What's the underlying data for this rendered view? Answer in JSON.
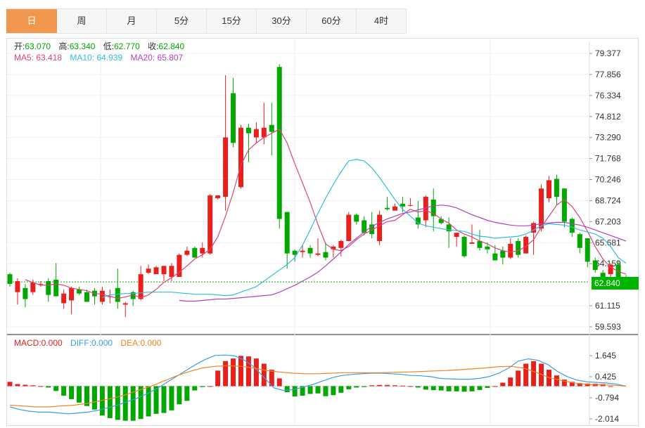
{
  "tabs": [
    {
      "label": "日",
      "active": true
    },
    {
      "label": "周",
      "active": false
    },
    {
      "label": "月",
      "active": false
    },
    {
      "label": "5分",
      "active": false
    },
    {
      "label": "15分",
      "active": false
    },
    {
      "label": "30分",
      "active": false
    },
    {
      "label": "60分",
      "active": false
    },
    {
      "label": "4时",
      "active": false
    }
  ],
  "ohlc": {
    "open_label": "开:",
    "open": "63.070",
    "high_label": "高:",
    "high": "63.340",
    "low_label": "低:",
    "low": "62.770",
    "close_label": "收:",
    "close": "62.840"
  },
  "ma": {
    "ma5_label": "MA5:",
    "ma5": "63.418",
    "ma10_label": "MA10:",
    "ma10": "64.939",
    "ma20_label": "MA20:",
    "ma20": "65.807"
  },
  "macd": {
    "macd_label": "MACD:",
    "macd": "0.000",
    "diff_label": "DIFF:",
    "diff": "0.000",
    "dea_label": "DEA:",
    "dea": "0.000"
  },
  "last_price": "62.840",
  "colors": {
    "up": "#e8201c",
    "down": "#00a800",
    "ma5": "#e0427a",
    "ma10": "#33bde0",
    "ma20": "#b044c0",
    "dea": "#f5821f",
    "diff": "#3a9ee6",
    "accent": "#f2974e",
    "price_tag": "#00b400"
  },
  "chart_data": [
    {
      "type": "candlestick",
      "y_ticks": [
        "79.377",
        "77.856",
        "76.334",
        "74.812",
        "73.290",
        "71.768",
        "70.246",
        "68.724",
        "67.203",
        "65.681",
        "64.159",
        "62.840",
        "61.115",
        "59.593"
      ],
      "ylim": [
        59.0,
        80.0
      ],
      "grid": true,
      "candles": [
        [
          63.4,
          62.7,
          63.5,
          62.5
        ],
        [
          62.1,
          62.9,
          63.1,
          61.2
        ],
        [
          62.4,
          61.6,
          62.7,
          61.0
        ],
        [
          62.1,
          62.8,
          63.0,
          61.9
        ],
        [
          62.7,
          62.7,
          62.9,
          62.5
        ],
        [
          62.9,
          61.9,
          63.1,
          61.4
        ],
        [
          63.0,
          61.8,
          64.2,
          61.8
        ],
        [
          61.3,
          62.0,
          62.3,
          60.9
        ],
        [
          61.5,
          62.4,
          62.5,
          60.5
        ],
        [
          62.3,
          62.0,
          62.5,
          61.9
        ],
        [
          62.1,
          61.4,
          62.3,
          61.4
        ],
        [
          62.2,
          61.8,
          62.4,
          61.2
        ],
        [
          61.4,
          62.2,
          62.5,
          61.2
        ],
        [
          61.8,
          61.8,
          62.3,
          61.3
        ],
        [
          62.4,
          61.4,
          63.8,
          60.9
        ],
        [
          61.2,
          61.3,
          61.4,
          60.3
        ],
        [
          62.1,
          61.6,
          62.2,
          61.1
        ],
        [
          61.6,
          63.4,
          64.0,
          61.5
        ],
        [
          63.5,
          63.8,
          64.1,
          63.4
        ],
        [
          63.4,
          63.9,
          64.0,
          63.4
        ],
        [
          63.4,
          64.0,
          64.0,
          62.9
        ],
        [
          63.2,
          64.0,
          64.2,
          62.9
        ],
        [
          63.2,
          64.8,
          64.9,
          63.2
        ],
        [
          64.8,
          65.1,
          65.4,
          64.7
        ],
        [
          65.3,
          64.6,
          65.4,
          64.6
        ],
        [
          64.9,
          65.3,
          65.7,
          64.6
        ],
        [
          64.9,
          69.1,
          69.2,
          64.8
        ],
        [
          68.9,
          69.1,
          69.1,
          68.8
        ],
        [
          69.0,
          73.3,
          77.8,
          68.0
        ],
        [
          76.5,
          72.9,
          77.6,
          72.6
        ],
        [
          69.7,
          74.0,
          74.2,
          69.6
        ],
        [
          74.0,
          73.6,
          74.3,
          71.5
        ],
        [
          73.3,
          73.9,
          74.4,
          72.9
        ],
        [
          73.3,
          74.0,
          75.8,
          72.8
        ],
        [
          74.2,
          73.7,
          75.8,
          72.0
        ],
        [
          78.4,
          67.4,
          78.6,
          66.7
        ],
        [
          67.9,
          64.9,
          67.9,
          63.8
        ],
        [
          65.1,
          64.8,
          65.2,
          64.3
        ],
        [
          65.0,
          65.1,
          65.5,
          64.6
        ],
        [
          65.3,
          64.9,
          65.5,
          64.6
        ],
        [
          64.8,
          64.9,
          66.0,
          64.7
        ],
        [
          65.0,
          64.6,
          65.7,
          64.4
        ],
        [
          65.2,
          65.4,
          65.5,
          64.6
        ],
        [
          65.3,
          65.8,
          65.9,
          64.7
        ],
        [
          65.8,
          67.7,
          67.9,
          65.8
        ],
        [
          67.7,
          67.2,
          67.8,
          67.0
        ],
        [
          67.3,
          66.4,
          67.6,
          66.2
        ],
        [
          67.0,
          66.3,
          67.9,
          66.0
        ],
        [
          65.8,
          67.7,
          68.0,
          65.5
        ],
        [
          68.2,
          68.1,
          69.0,
          68.0
        ],
        [
          68.0,
          68.3,
          68.5,
          68.0
        ],
        [
          68.5,
          68.3,
          69.0,
          67.9
        ],
        [
          68.4,
          68.4,
          68.9,
          68.3
        ],
        [
          67.5,
          67.0,
          68.7,
          66.7
        ],
        [
          67.3,
          69.0,
          69.1,
          66.8
        ],
        [
          68.8,
          67.6,
          69.6,
          66.5
        ],
        [
          67.4,
          67.1,
          67.6,
          67.0
        ],
        [
          67.0,
          66.5,
          67.5,
          65.3
        ],
        [
          66.1,
          66.4,
          66.4,
          65.4
        ],
        [
          66.1,
          64.7,
          66.2,
          64.6
        ],
        [
          65.6,
          65.7,
          67.0,
          65.6
        ],
        [
          65.8,
          65.3,
          66.6,
          65.1
        ],
        [
          65.4,
          65.2,
          65.7,
          64.9
        ],
        [
          64.9,
          64.4,
          65.5,
          64.4
        ],
        [
          65.1,
          64.6,
          65.4,
          64.1
        ],
        [
          64.6,
          65.6,
          66.0,
          64.5
        ],
        [
          65.8,
          64.8,
          66.0,
          64.6
        ],
        [
          64.9,
          66.1,
          66.2,
          64.9
        ],
        [
          66.4,
          67.1,
          67.2,
          64.8
        ],
        [
          66.7,
          69.6,
          69.9,
          66.5
        ],
        [
          68.9,
          70.2,
          70.5,
          68.6
        ],
        [
          70.3,
          69.0,
          70.6,
          68.4
        ],
        [
          69.6,
          67.2,
          69.6,
          66.8
        ],
        [
          67.4,
          66.4,
          67.5,
          66.1
        ],
        [
          66.3,
          65.3,
          66.4,
          64.9
        ],
        [
          66.0,
          64.3,
          66.0,
          63.9
        ],
        [
          64.4,
          63.7,
          64.6,
          63.5
        ],
        [
          63.5,
          62.9,
          63.7,
          62.9
        ],
        [
          63.4,
          64.1,
          64.2,
          63.0
        ],
        [
          64.1,
          63.0,
          64.4,
          62.9
        ],
        [
          63.07,
          62.84,
          63.34,
          62.77
        ]
      ],
      "ma5": [
        63.0,
        62.8,
        62.6,
        62.6,
        62.7,
        62.6,
        62.4,
        62.3,
        62.2,
        62.0,
        61.95,
        61.8,
        61.65,
        61.75,
        61.9,
        61.7,
        61.9,
        62.3,
        62.8,
        63.15,
        63.55,
        64.0,
        64.5,
        64.8,
        65.2,
        66.1,
        67.6,
        69.3,
        71.3,
        72.4,
        72.9,
        73.3,
        73.6,
        73.9,
        72.9,
        71.4,
        70.0,
        68.6,
        67.0,
        65.6,
        65.2,
        65.1,
        65.4,
        65.9,
        66.3,
        66.6,
        66.9,
        67.2,
        67.3,
        67.7,
        68.1,
        67.9,
        68.0,
        67.8,
        67.4,
        67.1,
        66.6,
        66.3,
        66.1,
        65.8,
        65.6,
        65.3,
        65.1,
        65.0,
        65.1,
        65.4,
        65.9,
        66.8,
        67.6,
        68.4,
        68.8,
        68.3,
        67.5,
        66.5,
        65.4,
        64.5,
        63.9,
        63.6,
        63.4
      ],
      "ma10": [
        61.7,
        61.9,
        61.95,
        62.0,
        62.0,
        62.05,
        62.1,
        62.1,
        62.1,
        62.1,
        62.05,
        62.0,
        61.95,
        61.95,
        61.95,
        61.9,
        61.85,
        61.9,
        62.1,
        62.3,
        62.5,
        62.9,
        63.3,
        63.7,
        64.1,
        64.6,
        65.5,
        66.6,
        67.8,
        68.9,
        69.9,
        70.8,
        71.6,
        71.7,
        71.6,
        71.1,
        70.4,
        69.6,
        68.8,
        68.1,
        67.6,
        67.1,
        66.9,
        66.8,
        66.7,
        66.6,
        66.55,
        66.5,
        66.3,
        66.15,
        66.1,
        66.0,
        66.05,
        66.1,
        66.15,
        66.3,
        66.6,
        66.9,
        67.05,
        67.0,
        66.95,
        66.8,
        66.6,
        66.45,
        66.3,
        66.0,
        65.4,
        64.6,
        64.2
      ],
      "ma20": [
        61.5,
        61.45,
        61.45,
        61.5,
        61.55,
        61.6,
        61.6,
        61.65,
        61.7,
        61.75,
        61.8,
        61.85,
        61.9,
        62.1,
        62.35,
        62.6,
        62.9,
        63.2,
        63.55,
        64.0,
        64.5,
        65.0,
        65.55,
        66.0,
        66.45,
        66.85,
        67.15,
        67.4,
        67.6,
        67.8,
        67.9,
        68.05,
        68.2,
        68.35,
        68.4,
        68.35,
        68.2,
        67.95,
        67.7,
        67.5,
        67.3,
        67.15,
        67.05,
        66.95,
        66.9,
        66.9,
        66.95,
        67.05,
        67.1,
        67.15,
        67.15,
        67.05,
        66.95,
        66.8,
        66.6,
        66.4,
        66.2,
        66.0,
        65.8
      ],
      "ma10_start_index": 12,
      "ma20_start_index": 22
    },
    {
      "type": "bar",
      "name": "MACD",
      "y_ticks": [
        "1.645",
        "0.425",
        "-0.794",
        "-2.014"
      ],
      "ylim": [
        -2.3,
        2.2
      ],
      "hist": [
        0.25,
        0.12,
        0.08,
        0.05,
        0.0,
        -0.08,
        -0.28,
        -0.55,
        -0.75,
        -0.95,
        -1.15,
        -1.35,
        -1.7,
        -1.85,
        -1.95,
        -2.0,
        -2.0,
        -1.9,
        -1.75,
        -1.6,
        -1.55,
        -1.4,
        -1.05,
        -0.85,
        -0.25,
        -0.05,
        0.0,
        0.9,
        1.45,
        1.6,
        1.75,
        1.72,
        1.6,
        1.3,
        0.95,
        0.45,
        -0.35,
        -0.6,
        -0.55,
        -0.45,
        -0.42,
        -0.58,
        -0.52,
        -0.38,
        -0.18,
        -0.08,
        -0.05,
        0.05,
        0.07,
        0.07,
        0.05,
        0.03,
        0.0,
        -0.08,
        -0.2,
        -0.23,
        -0.25,
        -0.3,
        -0.3,
        -0.32,
        -0.3,
        -0.22,
        -0.1,
        0.0,
        0.2,
        0.5,
        0.9,
        1.3,
        1.45,
        1.3,
        0.95,
        0.62,
        0.38,
        0.25,
        0.18,
        0.15,
        0.14,
        0.12,
        0.0
      ],
      "diff": [
        -1.2,
        -1.35,
        -1.45,
        -1.5,
        -1.5,
        -1.55,
        -1.6,
        -1.55,
        -1.5,
        -1.4,
        -1.25,
        -1.1,
        -0.9,
        -0.7,
        -0.45,
        -0.15,
        0.2,
        0.55,
        0.9,
        1.25,
        1.55,
        1.78,
        1.8,
        1.75,
        1.5,
        1.1,
        0.5,
        -0.1,
        -0.25,
        -0.2,
        -0.05,
        0.1,
        0.3,
        0.5,
        0.62,
        0.68,
        0.72,
        0.75,
        0.75,
        0.72,
        0.68,
        0.62,
        0.6,
        0.55,
        0.45,
        0.42,
        0.4,
        0.4,
        0.45,
        0.55,
        0.75,
        1.05,
        1.45,
        1.58,
        1.5,
        1.25,
        0.85,
        0.55,
        0.35,
        0.25,
        0.22,
        0.18,
        0.12,
        0.0
      ],
      "dea": [
        -1.1,
        -1.15,
        -1.2,
        -1.2,
        -1.15,
        -1.1,
        -1.0,
        -0.85,
        -0.7,
        -0.5,
        -0.25,
        0.0,
        0.3,
        0.6,
        0.85,
        1.05,
        1.15,
        1.18,
        1.15,
        1.05,
        0.9,
        0.82,
        0.75,
        0.72,
        0.72,
        0.75,
        0.78,
        0.78,
        0.77,
        0.78,
        0.8,
        0.82,
        0.85,
        0.88,
        0.9,
        0.95,
        1.0,
        1.05,
        1.12,
        1.15,
        1.05,
        0.8,
        0.5,
        0.32,
        0.18,
        0.1,
        0.08,
        0.05,
        0.0
      ],
      "diff_start_index": 0,
      "dea_start_index": 0
    }
  ]
}
